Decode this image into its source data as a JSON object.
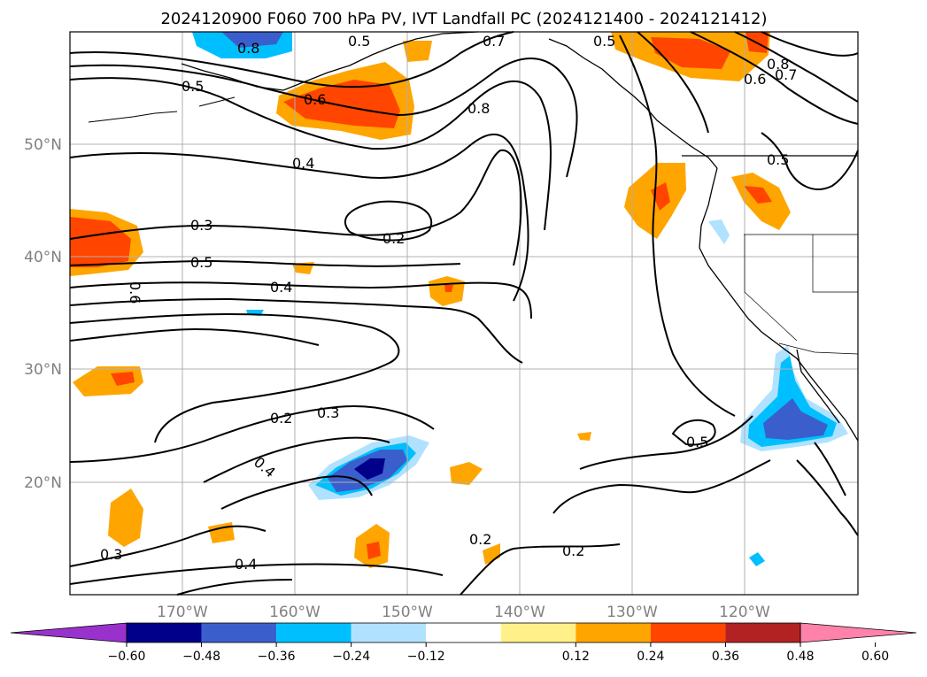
{
  "title": "2024120900 F060 700 hPa PV, IVT Landfall PC (2024121400 - 2024121412)",
  "lat_labels": [
    "50°N",
    "40°N",
    "30°N",
    "20°N"
  ],
  "lon_labels": [
    "170°W",
    "160°W",
    "150°W",
    "140°W",
    "130°W",
    "120°W"
  ],
  "colorbar": {
    "ticks": [
      "−0.60",
      "−0.48",
      "−0.36",
      "−0.24",
      "−0.12",
      "0.12",
      "0.24",
      "0.36",
      "0.48",
      "0.60"
    ],
    "colors": [
      "#9932cc",
      "#00008b",
      "#3a5fcd",
      "#00bfff",
      "#b0e2ff",
      "#ffffff",
      "#fff08a",
      "#ffa500",
      "#ff4500",
      "#b22222",
      "#ff82ab"
    ]
  },
  "contour_labels": [
    "0.8",
    "0.5",
    "0.7",
    "0.5",
    "0.8",
    "0.7",
    "0.6",
    "0.5",
    "0.6",
    "0.8",
    "0.4",
    "0.5",
    "0.3",
    "0.2",
    "0.5",
    "0.4",
    "0.6",
    "0.2",
    "0.3",
    "0.4",
    "0.5",
    "0.2",
    "0.2",
    "0.3",
    "0.4"
  ],
  "chart_data": {
    "type": "map",
    "title": "2024120900 F060 700 hPa PV, IVT Landfall PC (2024121400 - 2024121412)",
    "lon_range": [
      -180,
      -110
    ],
    "lat_range": [
      10,
      60
    ],
    "grid": true,
    "colorbar_ticks": [
      -0.6,
      -0.48,
      -0.36,
      -0.24,
      -0.12,
      0.12,
      0.24,
      0.36,
      0.48,
      0.6
    ]
  }
}
